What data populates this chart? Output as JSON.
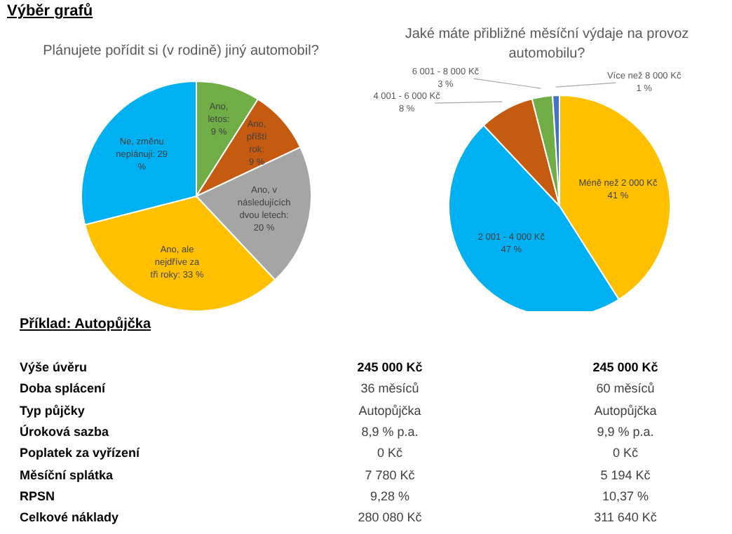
{
  "chart_data": [
    {
      "type": "pie",
      "title": "Plánujete pořídit si (v rodině) jiný automobil?",
      "annotations": [
        "Výběr grafů"
      ],
      "categories": [
        "Ano, letos",
        "Ano, příští rok",
        "Ano, v následujících dvou letech",
        "Ano, ale nejdříve za tři roky",
        "Ne, změnu neplánuji"
      ],
      "values": [
        9,
        9,
        20,
        33,
        29
      ],
      "value_labels": [
        ": 9 %",
        ": 9 %",
        ": 20 %",
        ": 33 %",
        ": 29 %"
      ],
      "colors": [
        "#70ad47",
        "#c55a11",
        "#a5a5a5",
        "#ffc000",
        "#00b0f0"
      ]
    },
    {
      "type": "pie",
      "title": "Jaké máte přibližné měsíční výdaje na provoz automobilu?",
      "categories": [
        "Méně než 2 000 Kč",
        "2 001 - 4 000 Kč",
        "4 001 - 6 000 Kč",
        "6 001 - 8 000 Kč",
        "Více než 8 000 Kč"
      ],
      "values": [
        41,
        47,
        8,
        3,
        1
      ],
      "value_labels": [
        "41 %",
        "47 %",
        "8 %",
        "3 %",
        "1 %"
      ],
      "colors": [
        "#ffc000",
        "#00b0f0",
        "#c55a11",
        "#70ad47",
        "#4472c4"
      ]
    },
    {
      "type": "other",
      "title": "Příklad: Autopůjčka",
      "annotations": [
        "Výše úvěru",
        "245 000 Kč",
        "245 000 Kč",
        "Doba splácení",
        "36 měsíců",
        "60 měsíců",
        "Typ půjčky",
        "Autopůjčka",
        "Autopůjčka",
        "Úroková sazba",
        "8,9 % p.a.",
        "9,9 % p.a.",
        "Poplatek za vyřízení",
        "0 Kč",
        "0 Kč",
        "Měsíční splátka",
        "7 780 Kč",
        "5 194 Kč",
        "RPSN",
        "9,28 %",
        "10,37 %",
        "Celkové náklady",
        "280 080 Kč",
        "311 640 Kč"
      ]
    }
  ]
}
